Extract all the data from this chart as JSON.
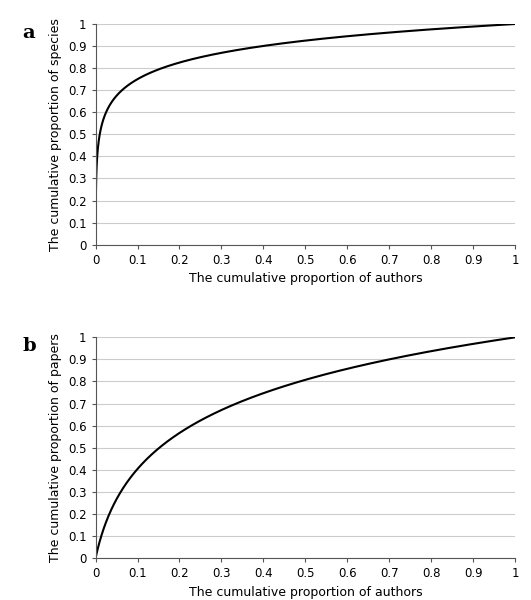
{
  "panel_a": {
    "label": "a",
    "ylabel": "The cumulative proportion of species",
    "xlabel": "The cumulative proportion of authors",
    "log_k": 10000,
    "xlim": [
      0,
      1
    ],
    "ylim": [
      0,
      1
    ],
    "xticks": [
      0,
      0.1,
      0.2,
      0.3,
      0.4,
      0.5,
      0.6,
      0.7,
      0.8,
      0.9,
      1.0
    ],
    "yticks": [
      0,
      0.1,
      0.2,
      0.3,
      0.4,
      0.5,
      0.6,
      0.7,
      0.8,
      0.9,
      1.0
    ],
    "xtick_labels": [
      "0",
      "0.1",
      "0.2",
      "0.3",
      "0.4",
      "0.5",
      "0.6",
      "0.7",
      "0.8",
      "0.9",
      "1"
    ],
    "ytick_labels": [
      "0",
      "0.1",
      "0.2",
      "0.3",
      "0.4",
      "0.5",
      "0.6",
      "0.7",
      "0.8",
      "0.9",
      "1"
    ]
  },
  "panel_b": {
    "label": "b",
    "ylabel": "The cumulative proportion of papers",
    "xlabel": "The cumulative proportion of authors",
    "log_k": 30,
    "xlim": [
      0,
      1
    ],
    "ylim": [
      0,
      1
    ],
    "xticks": [
      0,
      0.1,
      0.2,
      0.3,
      0.4,
      0.5,
      0.6,
      0.7,
      0.8,
      0.9,
      1.0
    ],
    "yticks": [
      0,
      0.1,
      0.2,
      0.3,
      0.4,
      0.5,
      0.6,
      0.7,
      0.8,
      0.9,
      1.0
    ],
    "xtick_labels": [
      "0",
      "0.1",
      "0.2",
      "0.3",
      "0.4",
      "0.5",
      "0.6",
      "0.7",
      "0.8",
      "0.9",
      "1"
    ],
    "ytick_labels": [
      "0",
      "0.1",
      "0.2",
      "0.3",
      "0.4",
      "0.5",
      "0.6",
      "0.7",
      "0.8",
      "0.9",
      "1"
    ]
  },
  "line_color": "#000000",
  "line_width": 1.5,
  "grid_color": "#cccccc",
  "grid_linewidth": 0.8,
  "bg_color": "#ffffff",
  "label_fontsize": 9,
  "tick_fontsize": 8.5,
  "panel_label_fontsize": 14,
  "panel_label_fontweight": "bold"
}
